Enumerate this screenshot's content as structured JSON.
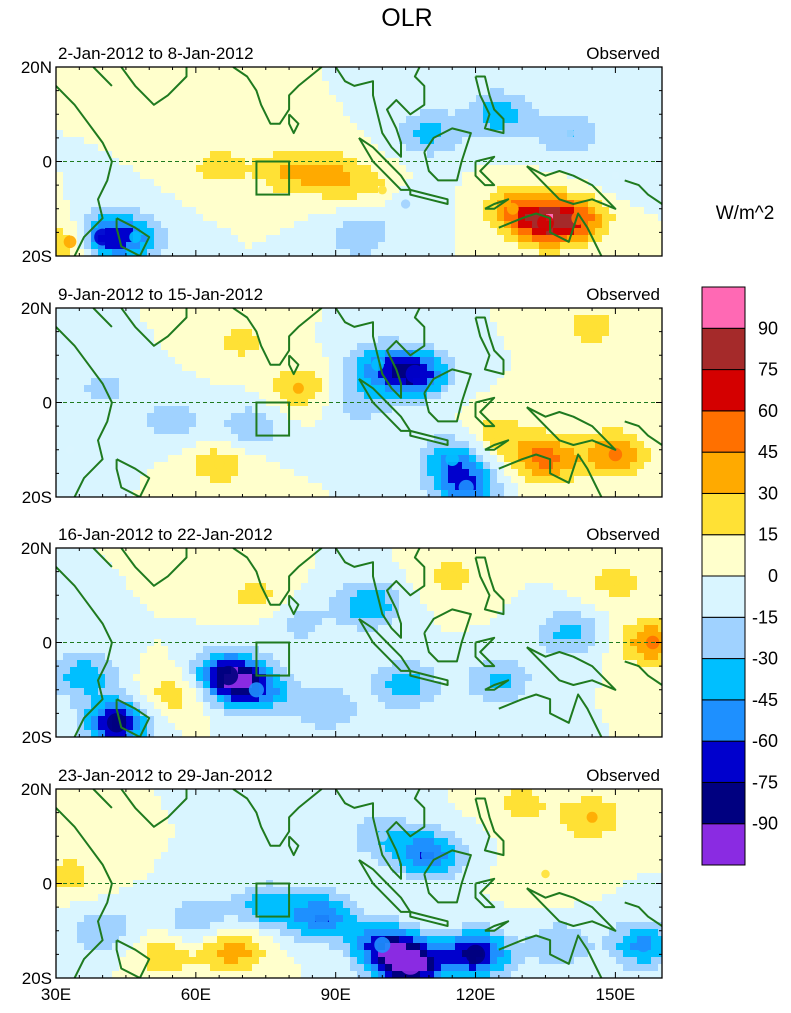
{
  "chart_data": {
    "type": "contour-map",
    "title": "OLR",
    "units_label": "W/m^2",
    "x_ticks": [
      {
        "lon": 30,
        "label": "30E"
      },
      {
        "lon": 60,
        "label": "60E"
      },
      {
        "lon": 90,
        "label": "90E"
      },
      {
        "lon": 120,
        "label": "120E"
      },
      {
        "lon": 150,
        "label": "150E"
      }
    ],
    "y_ticks": [
      {
        "lat": 20,
        "label": "20N"
      },
      {
        "lat": 0,
        "label": "0"
      },
      {
        "lat": -20,
        "label": "20S"
      }
    ],
    "lon_range": [
      30,
      160
    ],
    "lat_range": [
      -20,
      20
    ],
    "colorbar": {
      "colors": [
        "#8a2be2",
        "#000080",
        "#0000cd",
        "#1e90ff",
        "#00bfff",
        "#a0d2ff",
        "#d9f5ff",
        "#ffffcc",
        "#ffe135",
        "#ffaa00",
        "#ff7000",
        "#d40000",
        "#a52a2a",
        "#ff69b4"
      ],
      "labels": [
        "-90",
        "-75",
        "-60",
        "-45",
        "-30",
        "-15",
        "0",
        "15",
        "30",
        "45",
        "60",
        "75",
        "90"
      ]
    },
    "box": {
      "lon": [
        73,
        80
      ],
      "lat": [
        -7,
        0
      ]
    },
    "panels": [
      {
        "left_label": "2-Jan-2012 to 8-Jan-2012",
        "right_label": "Observed",
        "anomalies": [
          {
            "lon": 80,
            "lat": -2,
            "v": 30
          },
          {
            "lon": 90,
            "lat": -3,
            "v": 30
          },
          {
            "lon": 65,
            "lat": -1,
            "v": 22
          },
          {
            "lon": 100,
            "lat": -6,
            "v": 18
          },
          {
            "lon": 135,
            "lat": -13,
            "v": 65
          },
          {
            "lon": 142,
            "lat": -12,
            "v": 45
          },
          {
            "lon": 128,
            "lat": -10,
            "v": 35
          },
          {
            "lon": 33,
            "lat": -17,
            "v": 40
          },
          {
            "lon": 40,
            "lat": -16,
            "v": -65
          },
          {
            "lon": 47,
            "lat": -16,
            "v": -35
          },
          {
            "lon": 125,
            "lat": 10,
            "v": -40
          },
          {
            "lon": 110,
            "lat": 6,
            "v": -35
          },
          {
            "lon": 140,
            "lat": 6,
            "v": -30
          },
          {
            "lon": 105,
            "lat": -9,
            "v": -20
          },
          {
            "lon": 95,
            "lat": -16,
            "v": -25
          },
          {
            "lon": 60,
            "lat": 14,
            "v": 12
          },
          {
            "lon": 150,
            "lat": -3,
            "v": -12
          }
        ]
      },
      {
        "left_label": "9-Jan-2012 to 15-Jan-2012",
        "right_label": "Observed",
        "anomalies": [
          {
            "lon": 107,
            "lat": 6,
            "v": -75
          },
          {
            "lon": 99,
            "lat": 8,
            "v": -40
          },
          {
            "lon": 115,
            "lat": -12,
            "v": -45
          },
          {
            "lon": 118,
            "lat": -18,
            "v": -55
          },
          {
            "lon": 72,
            "lat": -5,
            "v": -28
          },
          {
            "lon": 55,
            "lat": -4,
            "v": -25
          },
          {
            "lon": 95,
            "lat": 0,
            "v": -25
          },
          {
            "lon": 135,
            "lat": -12,
            "v": 50
          },
          {
            "lon": 150,
            "lat": -11,
            "v": 45
          },
          {
            "lon": 125,
            "lat": -7,
            "v": 25
          },
          {
            "lon": 82,
            "lat": 3,
            "v": 30
          },
          {
            "lon": 65,
            "lat": -13,
            "v": 25
          },
          {
            "lon": 70,
            "lat": 13,
            "v": 20
          },
          {
            "lon": 145,
            "lat": 16,
            "v": 22
          },
          {
            "lon": 40,
            "lat": 3,
            "v": -20
          },
          {
            "lon": 33,
            "lat": -10,
            "v": -15
          }
        ]
      },
      {
        "left_label": "16-Jan-2012 to 22-Jan-2012",
        "right_label": "Observed",
        "anomalies": [
          {
            "lon": 67,
            "lat": -7,
            "v": -80
          },
          {
            "lon": 73,
            "lat": -10,
            "v": -55
          },
          {
            "lon": 43,
            "lat": -17,
            "v": -80
          },
          {
            "lon": 36,
            "lat": -7,
            "v": -40
          },
          {
            "lon": 97,
            "lat": 8,
            "v": -45
          },
          {
            "lon": 105,
            "lat": -9,
            "v": -40
          },
          {
            "lon": 125,
            "lat": -8,
            "v": -35
          },
          {
            "lon": 140,
            "lat": 2,
            "v": -35
          },
          {
            "lon": 88,
            "lat": -14,
            "v": -30
          },
          {
            "lon": 158,
            "lat": 0,
            "v": 45
          },
          {
            "lon": 150,
            "lat": 13,
            "v": 22
          },
          {
            "lon": 55,
            "lat": -11,
            "v": 25
          },
          {
            "lon": 73,
            "lat": 10,
            "v": 20
          },
          {
            "lon": 115,
            "lat": 14,
            "v": 20
          },
          {
            "lon": 82,
            "lat": 4,
            "v": -20
          }
        ]
      },
      {
        "left_label": "23-Jan-2012 to 29-Jan-2012",
        "right_label": "Observed",
        "anomalies": [
          {
            "lon": 106,
            "lat": -17,
            "v": -100
          },
          {
            "lon": 120,
            "lat": -15,
            "v": -80
          },
          {
            "lon": 100,
            "lat": -13,
            "v": -60
          },
          {
            "lon": 87,
            "lat": -7,
            "v": -60
          },
          {
            "lon": 110,
            "lat": 6,
            "v": -60
          },
          {
            "lon": 100,
            "lat": 10,
            "v": -30
          },
          {
            "lon": 75,
            "lat": -5,
            "v": -40
          },
          {
            "lon": 60,
            "lat": -8,
            "v": -30
          },
          {
            "lon": 40,
            "lat": -10,
            "v": -30
          },
          {
            "lon": 138,
            "lat": -13,
            "v": -30
          },
          {
            "lon": 156,
            "lat": -13,
            "v": -50
          },
          {
            "lon": 68,
            "lat": -14,
            "v": 40
          },
          {
            "lon": 53,
            "lat": -15,
            "v": 25
          },
          {
            "lon": 145,
            "lat": 14,
            "v": 30
          },
          {
            "lon": 130,
            "lat": 17,
            "v": 20
          },
          {
            "lon": 135,
            "lat": 2,
            "v": 15
          },
          {
            "lon": 33,
            "lat": 2,
            "v": 20
          },
          {
            "lon": 80,
            "lat": 14,
            "v": -12
          }
        ]
      }
    ]
  }
}
